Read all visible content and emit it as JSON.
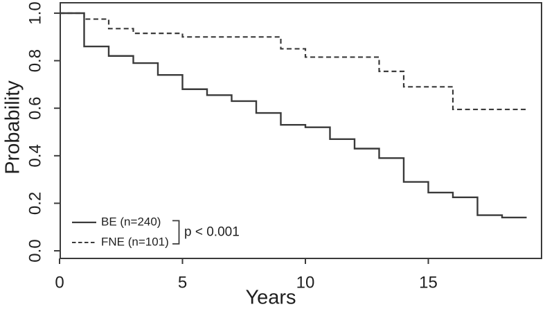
{
  "figure": {
    "background": "#ffffff",
    "line_color": "#3a3a3a",
    "text_color": "#1f1f1f"
  },
  "chart_data": {
    "type": "line",
    "subtype": "kaplan-meier-step",
    "title": "",
    "xlabel": "Years",
    "ylabel": "Probability",
    "xlim": [
      0,
      19.6
    ],
    "ylim": [
      -0.03,
      1.05
    ],
    "xticks": [
      0,
      5,
      10,
      15
    ],
    "xtick_labels": [
      "0",
      "5",
      "10",
      "15"
    ],
    "yticks": [
      0.0,
      0.2,
      0.4,
      0.6,
      0.8,
      1.0
    ],
    "ytick_labels": [
      "0.0",
      "0.2",
      "0.4",
      "0.6",
      "0.8",
      "1.0"
    ],
    "grid": false,
    "legend_position": "inside-bottom-left",
    "annotation": "p < 0.001",
    "end_time": 19,
    "series": [
      {
        "name": "BE (n=240)",
        "style": "solid",
        "steps": [
          [
            0,
            1.0
          ],
          [
            1,
            0.86
          ],
          [
            2,
            0.82
          ],
          [
            3,
            0.79
          ],
          [
            4,
            0.74
          ],
          [
            5,
            0.68
          ],
          [
            6,
            0.655
          ],
          [
            7,
            0.63
          ],
          [
            8,
            0.58
          ],
          [
            9,
            0.53
          ],
          [
            10,
            0.52
          ],
          [
            11,
            0.47
          ],
          [
            12,
            0.43
          ],
          [
            13,
            0.39
          ],
          [
            14,
            0.29
          ],
          [
            15,
            0.245
          ],
          [
            16,
            0.225
          ],
          [
            17,
            0.15
          ],
          [
            18,
            0.14
          ]
        ]
      },
      {
        "name": "FNE (n=101)",
        "style": "dashed",
        "steps": [
          [
            0,
            1.0
          ],
          [
            1,
            0.975
          ],
          [
            2,
            0.935
          ],
          [
            3,
            0.915
          ],
          [
            5,
            0.9
          ],
          [
            9,
            0.85
          ],
          [
            10,
            0.815
          ],
          [
            13,
            0.755
          ],
          [
            14,
            0.69
          ],
          [
            16,
            0.595
          ]
        ]
      }
    ]
  }
}
